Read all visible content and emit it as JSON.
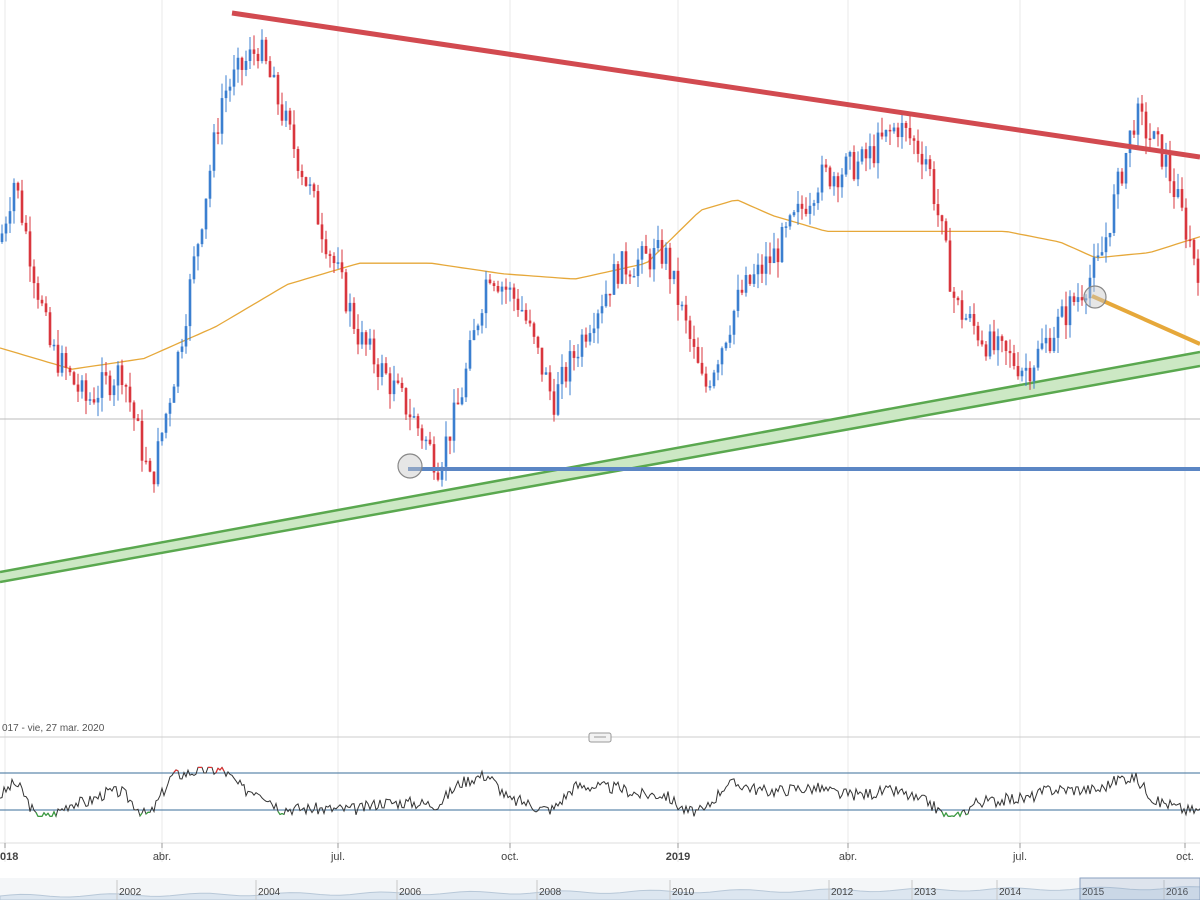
{
  "chart_data": {
    "type": "candlestick",
    "range_label": "017 - vie, 27 mar. 2020",
    "time_axis": {
      "labels": [
        "018",
        "abr.",
        "jul.",
        "oct.",
        "2019",
        "abr.",
        "jul.",
        "oct."
      ],
      "bold": [
        true,
        false,
        false,
        false,
        true,
        false,
        false,
        false
      ]
    },
    "navigator_years": [
      "2002",
      "2004",
      "2006",
      "2008",
      "2010",
      "2012",
      "2013",
      "2014",
      "2015",
      "2016"
    ],
    "colors": {
      "up": "#3b7fd0",
      "down": "#d9363e",
      "ma": "#e6a83a",
      "resistance": "#d24a50",
      "support_fill": "#cce8c4",
      "support_edge": "#5aa84f",
      "horizontal": "#5b86c4",
      "oscillator_line": "#333333",
      "oscillator_overbought": "#e03030",
      "oscillator_oversold": "#3aa040",
      "oscillator_band": "#3a6e9a"
    },
    "price_path": [
      [
        0,
        60
      ],
      [
        0.4,
        72
      ],
      [
        1.4,
        40
      ],
      [
        2.4,
        30
      ],
      [
        3.4,
        36
      ],
      [
        4.2,
        14
      ],
      [
        5.0,
        40
      ],
      [
        6.2,
        88
      ],
      [
        7.2,
        97
      ],
      [
        8.6,
        70
      ],
      [
        10.0,
        42
      ],
      [
        11.4,
        28
      ],
      [
        12.2,
        18
      ],
      [
        12.8,
        30
      ],
      [
        13.6,
        55
      ],
      [
        14.5,
        48
      ],
      [
        15.4,
        30
      ],
      [
        16.4,
        45
      ],
      [
        17.2,
        55
      ],
      [
        18.5,
        58
      ],
      [
        19.6,
        32
      ],
      [
        20.6,
        50
      ],
      [
        21.6,
        58
      ],
      [
        22.8,
        72
      ],
      [
        24.0,
        75
      ],
      [
        25.0,
        82
      ],
      [
        25.8,
        76
      ],
      [
        26.6,
        48
      ],
      [
        27.6,
        40
      ],
      [
        28.6,
        36
      ],
      [
        29.6,
        46
      ],
      [
        30.6,
        56
      ],
      [
        31.6,
        84
      ],
      [
        32.4,
        76
      ],
      [
        33.4,
        54
      ]
    ],
    "ma_path": [
      [
        0,
        40
      ],
      [
        2,
        36
      ],
      [
        4,
        38
      ],
      [
        6,
        44
      ],
      [
        8,
        52
      ],
      [
        10,
        56
      ],
      [
        12,
        56
      ],
      [
        14,
        54
      ],
      [
        16,
        53
      ],
      [
        18,
        56
      ],
      [
        19.5,
        66
      ],
      [
        20.5,
        68
      ],
      [
        21.5,
        65
      ],
      [
        23,
        62
      ],
      [
        25,
        62
      ],
      [
        26.5,
        62
      ],
      [
        28,
        62
      ],
      [
        29.5,
        60
      ],
      [
        30.5,
        57
      ],
      [
        32,
        58
      ],
      [
        33.4,
        61
      ]
    ]
  }
}
